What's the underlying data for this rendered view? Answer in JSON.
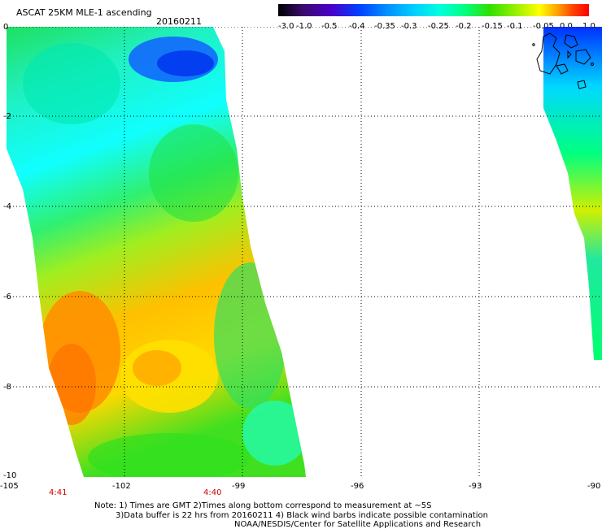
{
  "header": {
    "title": "ASCAT 25KM MLE-1 ascending",
    "date": "20160211"
  },
  "colorbar": {
    "labels": [
      "-3.0",
      "-1.0",
      "-0.5",
      "-0.4",
      "-0.35",
      "-0.3",
      "-0.25",
      "-0.2",
      "-0.15",
      "-0.1",
      "-0.05",
      "0.0",
      "1.0"
    ],
    "colors": [
      "#000000",
      "#3a0a6e",
      "#4a00c8",
      "#0040ff",
      "#0090ff",
      "#00d0ff",
      "#00ffe0",
      "#00ff80",
      "#30e000",
      "#a0f000",
      "#ffff00",
      "#ffa000",
      "#ff4000",
      "#ff0000"
    ]
  },
  "axes": {
    "x_labels": [
      "-105",
      "-102",
      "-99",
      "-96",
      "-93",
      "-90"
    ],
    "y_labels": [
      "0",
      "-2",
      "-4",
      "-6",
      "-8",
      "-10"
    ]
  },
  "times": [
    "4:41",
    "4:40"
  ],
  "notes": [
    "Note: 1) Times are GMT 2)Times along bottom correspond to measurement at ~5S",
    "3)Data buffer is 22 hrs from 20160211 4) Black wind barbs indicate possible contamination",
    "NOAA/NESDIS/Center for Satellite Applications and Research"
  ]
}
